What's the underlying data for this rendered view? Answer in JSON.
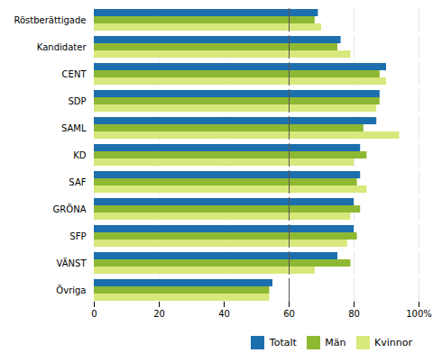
{
  "chart_data": {
    "type": "bar",
    "orientation": "horizontal",
    "categories": [
      "Övriga",
      "VÄNST",
      "SFP",
      "GRÖNA",
      "SAF",
      "KD",
      "SAML",
      "SDP",
      "CENT",
      "Kandidater",
      "Röstberättigade"
    ],
    "series": [
      {
        "name": "Totalt",
        "color": "#1c6fad",
        "values": [
          55,
          75,
          80,
          80,
          82,
          82,
          87,
          88,
          90,
          76,
          69
        ]
      },
      {
        "name": "Män",
        "color": "#8db832",
        "values": [
          54,
          79,
          81,
          82,
          81,
          84,
          83,
          88,
          88,
          75,
          68
        ]
      },
      {
        "name": "Kvinnor",
        "color": "#d9e87c",
        "values": [
          54,
          68,
          78,
          79,
          84,
          80,
          94,
          87,
          90,
          79,
          70
        ]
      }
    ],
    "xlim": [
      0,
      100
    ],
    "xticks": [
      0,
      20,
      40,
      60,
      80,
      {
        "value": 100,
        "label": "100%"
      }
    ],
    "vline": 60,
    "grid": true,
    "legend": "lower right"
  }
}
